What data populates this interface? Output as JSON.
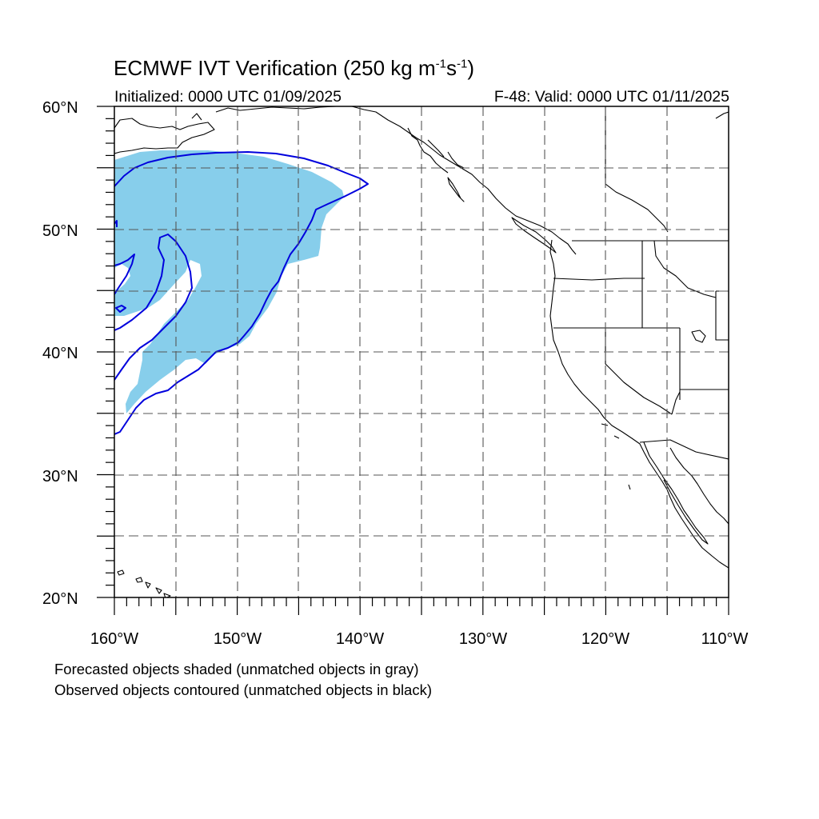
{
  "title": {
    "main_prefix": "ECMWF IVT Verification (250 kg m",
    "sup1": "-1",
    "middle": "s",
    "sup2": "-1",
    "suffix": ")"
  },
  "subtitle": {
    "initialized": "Initialized: 0000 UTC 01/09/2025",
    "valid": "F-48: Valid: 0000 UTC 01/11/2025"
  },
  "axes": {
    "lat_labels": [
      "60°N",
      "50°N",
      "40°N",
      "30°N",
      "20°N"
    ],
    "lon_labels": [
      "160°W",
      "150°W",
      "140°W",
      "130°W",
      "120°W",
      "110°W"
    ],
    "lat_range": [
      20,
      60
    ],
    "lon_range": [
      -160,
      -110
    ],
    "grid": "dashed every 5 degrees"
  },
  "legend": {
    "line1": "Forecasted objects shaded (unmatched objects in gray)",
    "line2": "Observed objects contoured (unmatched objects in black)"
  },
  "colors": {
    "forecast_fill": "#87ceeb",
    "observed_contour": "#0000dd",
    "coastline": "#000000",
    "grid": "#555555"
  }
}
